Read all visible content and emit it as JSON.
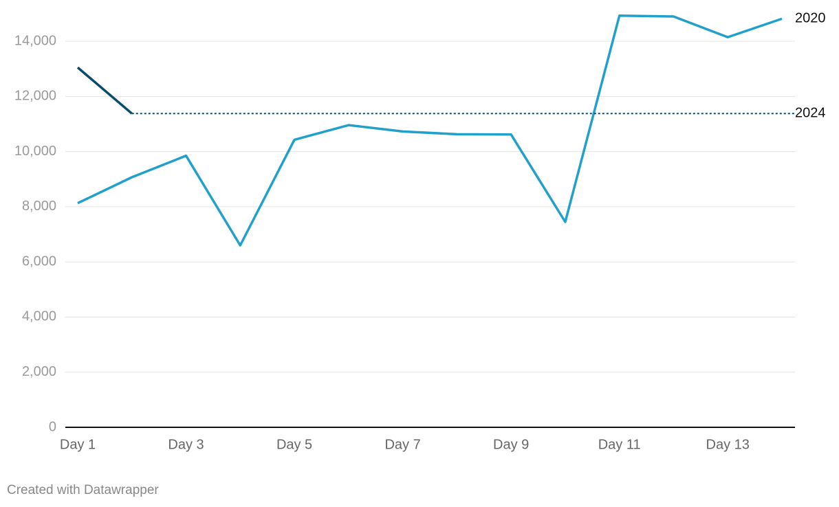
{
  "chart_data": {
    "type": "line",
    "categories": [
      "Day 1",
      null,
      "Day 3",
      null,
      "Day 5",
      null,
      "Day 7",
      null,
      "Day 9",
      null,
      "Day 11",
      null,
      "Day 13",
      null
    ],
    "series": [
      {
        "name": "2020",
        "color": "#22a0cc",
        "values": [
          8130,
          9070,
          9850,
          6600,
          10430,
          10960,
          10730,
          10630,
          10620,
          7450,
          14930,
          14900,
          14150,
          14820
        ]
      },
      {
        "name": "2024",
        "color": "#0b4a6f",
        "values": [
          13050,
          11380,
          null,
          null,
          null,
          null,
          null,
          null,
          null,
          null,
          null,
          null,
          null,
          null
        ],
        "extend_last": "dotted"
      }
    ],
    "ylim": [
      0,
      15000
    ],
    "yticks": [
      0,
      {
        "value": 2000,
        "label": "2,000"
      },
      {
        "value": 4000,
        "label": "4,000"
      },
      {
        "value": 6000,
        "label": "6,000"
      },
      {
        "value": 8000,
        "label": "8,000"
      },
      {
        "value": 10000,
        "label": "10,000"
      },
      {
        "value": 12000,
        "label": "12,000"
      },
      {
        "value": 14000,
        "label": "14,000"
      }
    ],
    "grid": true,
    "source": "Created with Datawrapper"
  }
}
